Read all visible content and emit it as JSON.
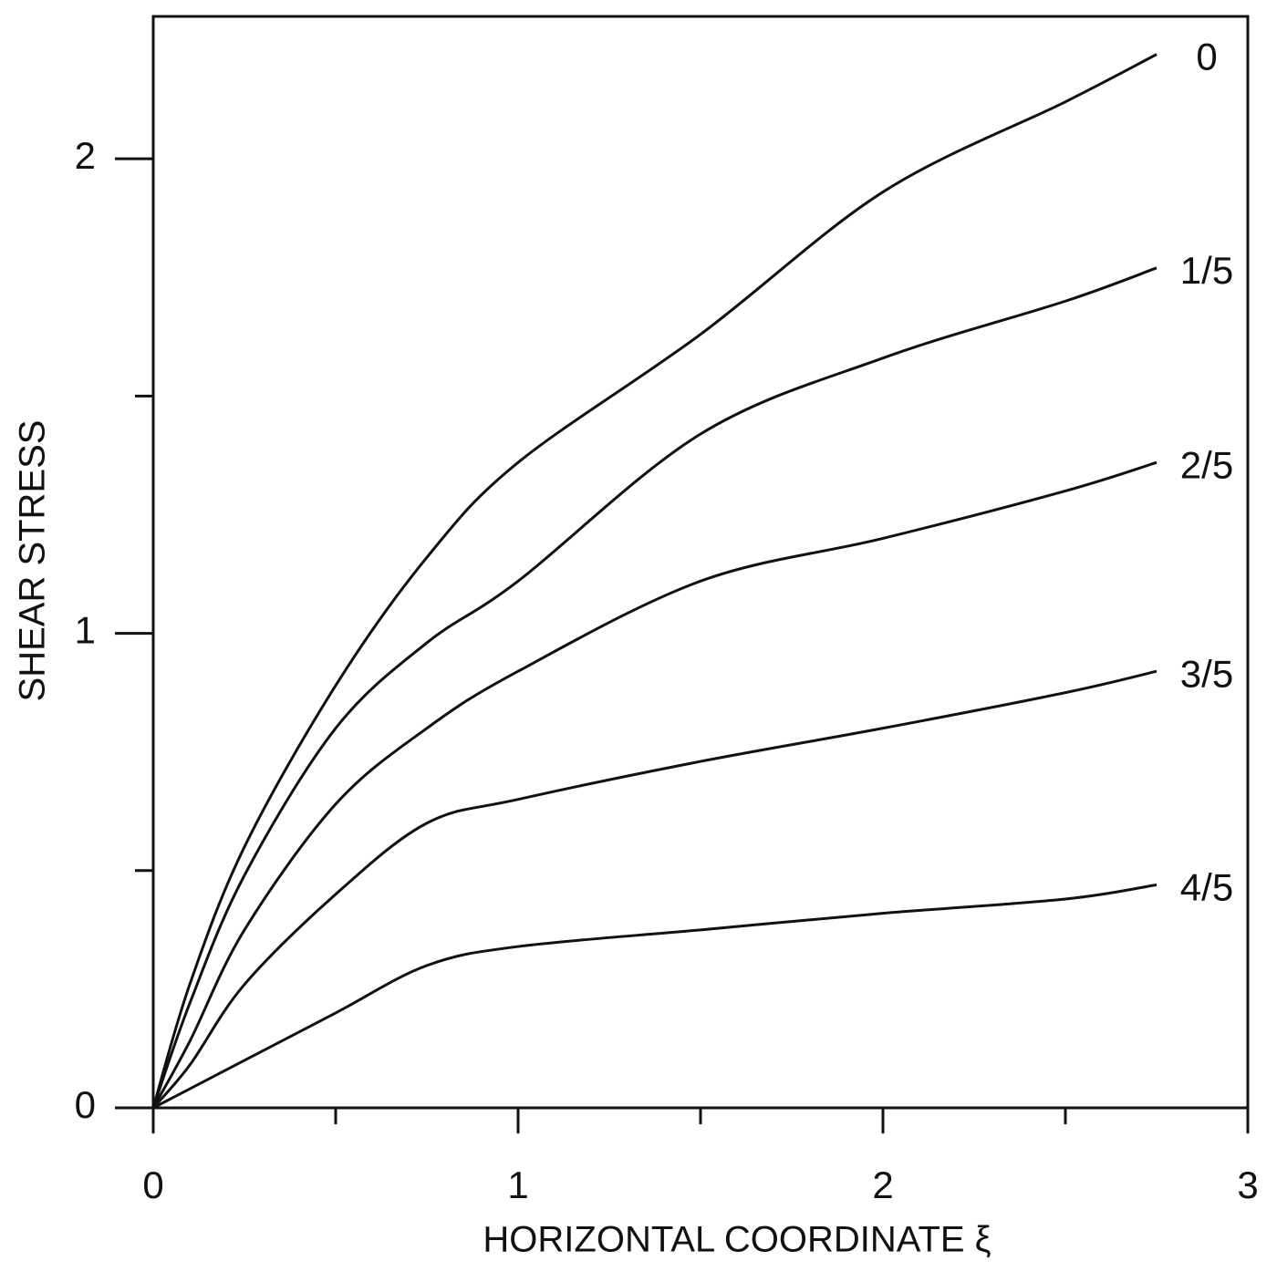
{
  "chart_data": {
    "type": "line",
    "xlabel": "HORIZONTAL COORDINATE ξ",
    "ylabel": "SHEAR STRESS",
    "x": [
      0,
      0.1,
      0.25,
      0.5,
      0.75,
      1,
      1.5,
      2,
      2.5,
      2.75
    ],
    "series": [
      {
        "name": "0",
        "color": "#111111",
        "values": [
          0,
          0.26,
          0.55,
          0.89,
          1.16,
          1.36,
          1.63,
          1.93,
          2.12,
          2.22
        ]
      },
      {
        "name": "1/5",
        "color": "#111111",
        "values": [
          0,
          0.22,
          0.49,
          0.8,
          0.98,
          1.11,
          1.42,
          1.58,
          1.7,
          1.77
        ]
      },
      {
        "name": "2/5",
        "color": "#111111",
        "values": [
          0,
          0.14,
          0.375,
          0.64,
          0.8,
          0.92,
          1.11,
          1.2,
          1.3,
          1.36
        ]
      },
      {
        "name": "3/5",
        "color": "#111111",
        "values": [
          0,
          0.09,
          0.26,
          0.45,
          0.6,
          0.65,
          0.73,
          0.8,
          0.875,
          0.92
        ]
      },
      {
        "name": "4/5",
        "color": "#111111",
        "values": [
          0,
          0.04,
          0.1,
          0.2,
          0.3,
          0.34,
          0.375,
          0.41,
          0.44,
          0.47
        ]
      }
    ],
    "xlim": [
      0,
      3
    ],
    "ylim": [
      0,
      2.3
    ],
    "xticks": [
      0,
      1,
      2,
      3
    ],
    "yticks": [
      0,
      1,
      2
    ],
    "xminor": [
      0.5,
      1.5,
      2.5
    ],
    "yminor": [
      0.5,
      1.5
    ],
    "grid": false
  }
}
